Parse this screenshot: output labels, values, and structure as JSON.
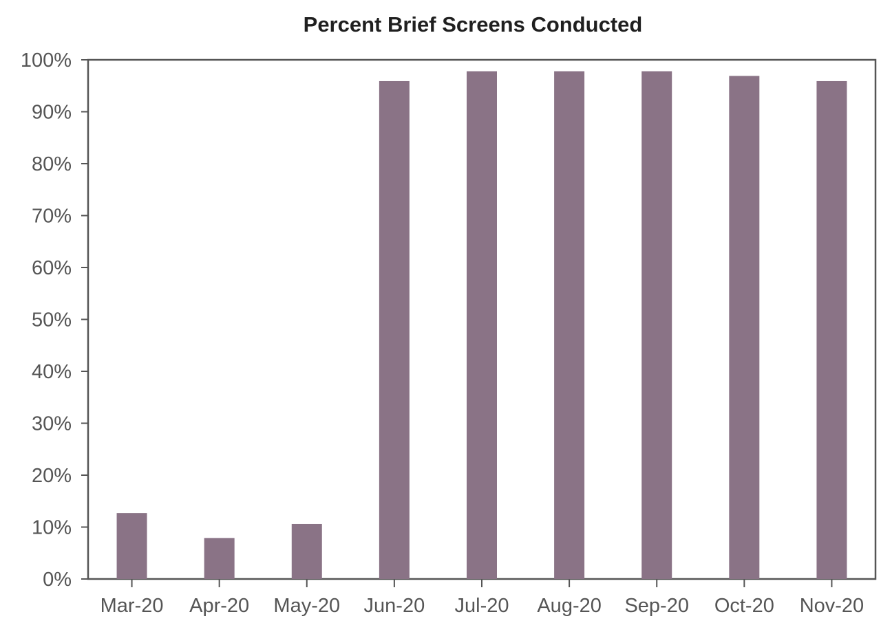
{
  "chart_data": {
    "type": "bar",
    "title": "Percent Brief Screens Conducted",
    "xlabel": "",
    "ylabel": "",
    "categories": [
      "Mar-20",
      "Apr-20",
      "May-20",
      "Jun-20",
      "Jul-20",
      "Aug-20",
      "Sep-20",
      "Oct-20",
      "Nov-20"
    ],
    "values": [
      12.7,
      7.9,
      10.6,
      95.9,
      97.8,
      97.8,
      97.8,
      96.9,
      95.9
    ],
    "ylim": [
      0,
      100
    ],
    "y_ticks": [
      0,
      10,
      20,
      30,
      40,
      50,
      60,
      70,
      80,
      90,
      100
    ],
    "y_tick_labels": [
      "0%",
      "10%",
      "20%",
      "30%",
      "40%",
      "50%",
      "60%",
      "70%",
      "80%",
      "90%",
      "100%"
    ],
    "grid": false,
    "legend": "none",
    "bar_color": "#8a7386",
    "axis_color": "#555555"
  }
}
